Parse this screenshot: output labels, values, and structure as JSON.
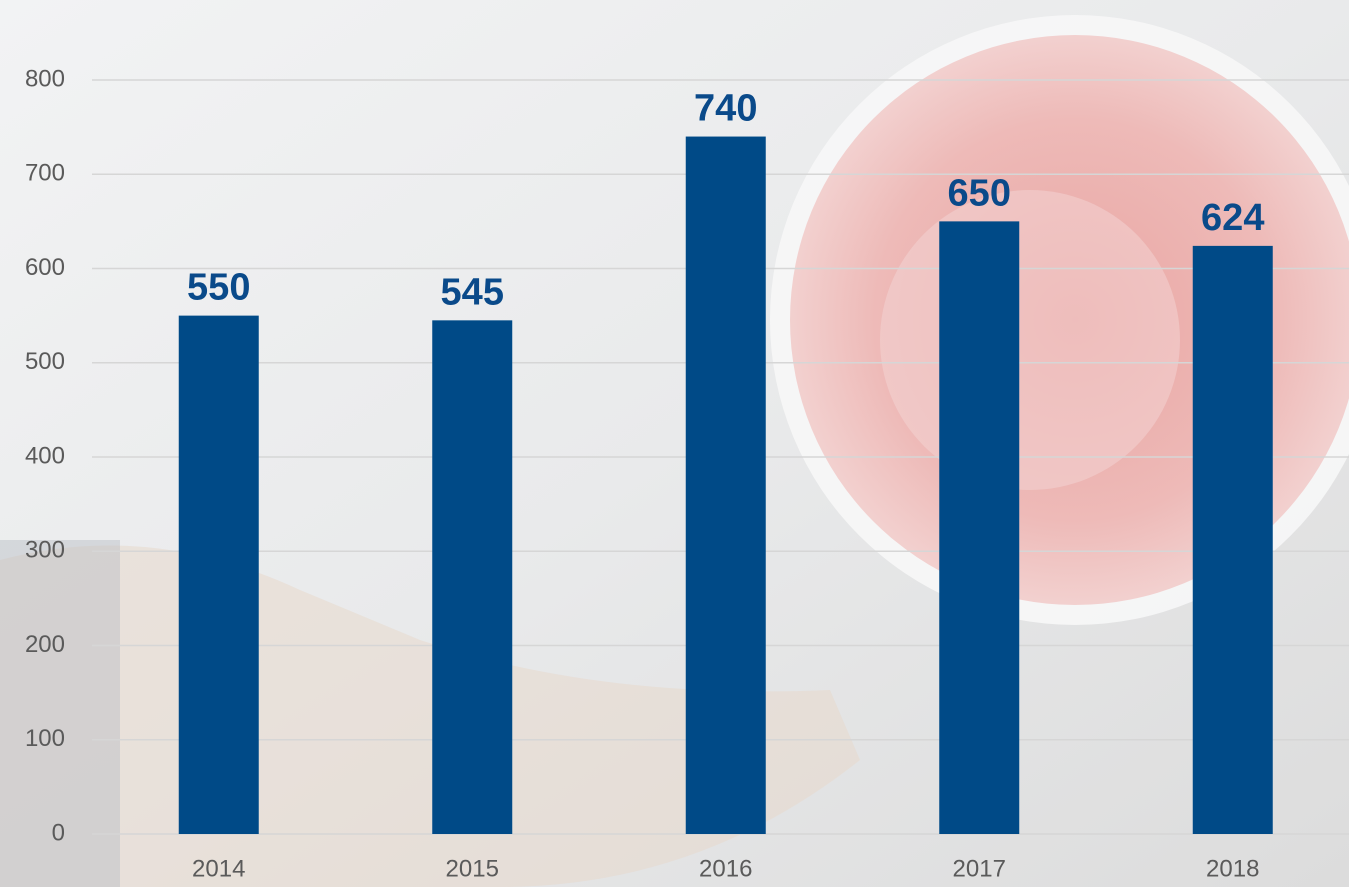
{
  "chart_data": {
    "type": "bar",
    "categories": [
      "2014",
      "2015",
      "2016",
      "2017",
      "2018"
    ],
    "values": [
      550,
      545,
      740,
      650,
      624
    ],
    "color": "#004a87",
    "ylim": [
      0,
      800
    ],
    "yticks": [
      0,
      100,
      200,
      300,
      400,
      500,
      600,
      700,
      800
    ],
    "grid": true
  }
}
